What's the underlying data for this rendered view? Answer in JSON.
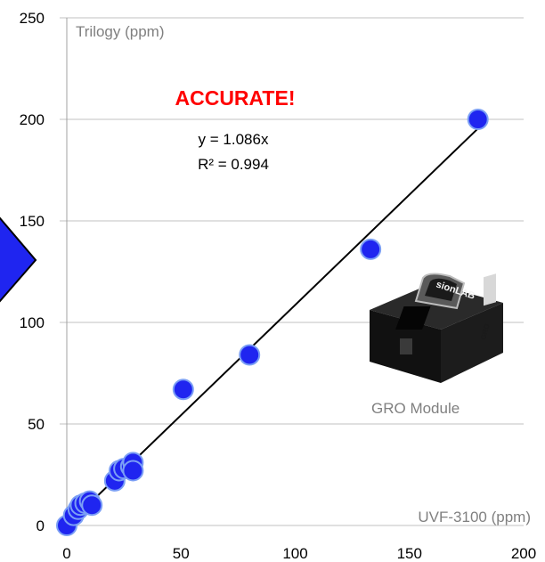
{
  "chart_data": {
    "type": "scatter",
    "xlabel": "UVF-3100 (ppm)",
    "ylabel": "Trilogy (ppm)",
    "xlim": [
      0,
      200
    ],
    "ylim": [
      0,
      250
    ],
    "xticks": [
      "0",
      "50",
      "100",
      "150",
      "200"
    ],
    "yticks": [
      "0",
      "50",
      "100",
      "150",
      "200",
      "250"
    ],
    "grid": {
      "horizontal": true,
      "vertical": false
    },
    "series": [
      {
        "points": [
          [
            0,
            0
          ],
          [
            3,
            5
          ],
          [
            5,
            8
          ],
          [
            6,
            10
          ],
          [
            8,
            11
          ],
          [
            10,
            12
          ],
          [
            11,
            10
          ],
          [
            21,
            22
          ],
          [
            23,
            27
          ],
          [
            25,
            28
          ],
          [
            28,
            29
          ],
          [
            29,
            31
          ],
          [
            29,
            27
          ],
          [
            51,
            67
          ],
          [
            80,
            84
          ],
          [
            133,
            136
          ],
          [
            180,
            200
          ]
        ]
      }
    ],
    "trendline": {
      "slope": 1.086,
      "intercept": 0,
      "equation": "y = 1.086x",
      "r_squared": "R² = 0.994"
    },
    "annotations": {
      "headline": "ACCURATE!",
      "module_caption": "GRO Module"
    },
    "colors": {
      "marker_fill": "#1f25f0",
      "marker_stroke": "#7b9ff5",
      "trendline": "#000000",
      "headline": "#ff0000",
      "gridline": "#c0c0c0",
      "arrow_fill": "#1f25f0"
    }
  },
  "image_icon": "gro-module-device"
}
